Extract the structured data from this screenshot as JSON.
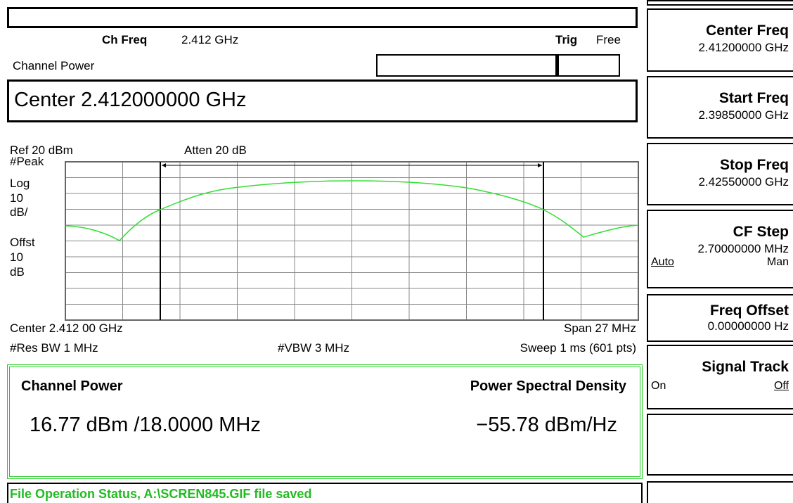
{
  "header": {
    "ch_freq_label": "Ch Freq",
    "ch_freq_value": "2.412 GHz",
    "trig_label": "Trig",
    "trig_value": "Free",
    "mode": "Channel Power",
    "active_entry": "Center 2.412000000 GHz"
  },
  "display": {
    "ref": "Ref 20 dBm",
    "atten": "Atten 20 dB",
    "scale_labels": [
      "#Peak",
      "Log",
      "10",
      "dB/",
      "Offst",
      "10",
      "dB"
    ],
    "center": "Center 2.412 00 GHz",
    "span": "Span 27 MHz",
    "res_bw": "#Res BW 1 MHz",
    "vbw": "#VBW 3 MHz",
    "sweep": "Sweep 1 ms (601 pts)"
  },
  "results": {
    "channel_power_label": "Channel Power",
    "channel_power_value": "16.77 dBm /18.0000 MHz",
    "psd_label": "Power Spectral Density",
    "psd_value": "−55.78 dBm/Hz"
  },
  "status": "File Operation Status, A:\\SCREN845.GIF file saved",
  "softkeys": [
    {
      "title": "Center Freq",
      "value": "2.41200000 GHz"
    },
    {
      "title": "Start Freq",
      "value": "2.39850000 GHz"
    },
    {
      "title": "Stop Freq",
      "value": "2.42550000 GHz"
    },
    {
      "title": "CF Step",
      "value": "2.70000000 MHz",
      "left": "Auto",
      "right": "Man"
    },
    {
      "title": "Freq Offset",
      "value": "0.00000000  Hz"
    },
    {
      "title": "Signal Track",
      "left": "On",
      "right": "Off"
    }
  ]
}
